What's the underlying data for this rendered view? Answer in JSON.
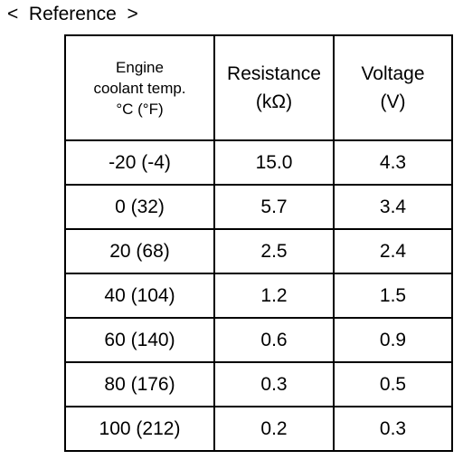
{
  "heading": "<  Reference  >",
  "table": {
    "headers": {
      "temp": [
        "Engine",
        "coolant temp.",
        "°C (°F)"
      ],
      "resistance": [
        "Resistance",
        "(kΩ)"
      ],
      "voltage": [
        "Voltage",
        "(V)"
      ]
    },
    "rows": [
      {
        "temp": "-20 (-4)",
        "resistance": "15.0",
        "voltage": "4.3"
      },
      {
        "temp": "0 (32)",
        "resistance": "5.7",
        "voltage": "3.4"
      },
      {
        "temp": "20 (68)",
        "resistance": "2.5",
        "voltage": "2.4"
      },
      {
        "temp": "40 (104)",
        "resistance": "1.2",
        "voltage": "1.5"
      },
      {
        "temp": "60 (140)",
        "resistance": "0.6",
        "voltage": "0.9"
      },
      {
        "temp": "80 (176)",
        "resistance": "0.3",
        "voltage": "0.5"
      },
      {
        "temp": "100 (212)",
        "resistance": "0.2",
        "voltage": "0.3"
      }
    ]
  }
}
